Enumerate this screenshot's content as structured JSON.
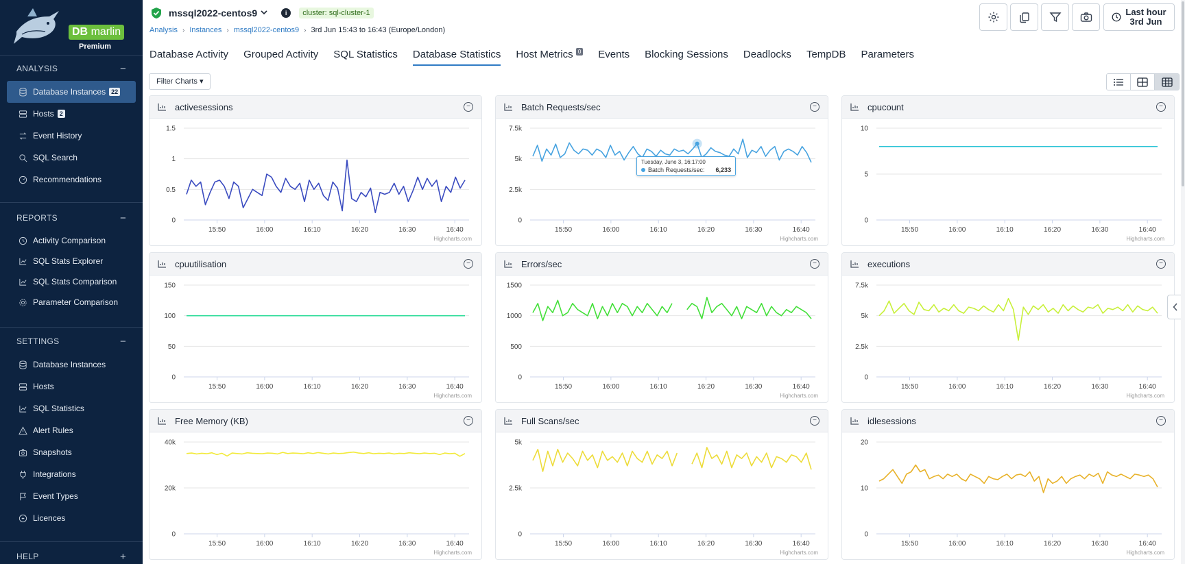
{
  "sidebar": {
    "logo": {
      "brand_bold": "DB",
      "brand": "marlin",
      "tier": "Premium"
    },
    "analysis": {
      "header": "ANALYSIS",
      "toggle": "−",
      "items": [
        {
          "label": "Database Instances",
          "badge": "22",
          "icon": "database-icon",
          "active": true
        },
        {
          "label": "Hosts",
          "badge": "2",
          "icon": "server-icon"
        },
        {
          "label": "Event History",
          "icon": "arrows-icon"
        },
        {
          "label": "SQL Search",
          "icon": "search-icon"
        },
        {
          "label": "Recommendations",
          "icon": "gauge-icon"
        }
      ]
    },
    "reports": {
      "header": "REPORTS",
      "toggle": "−",
      "items": [
        {
          "label": "Activity Comparison",
          "icon": "clock-icon"
        },
        {
          "label": "SQL Stats Explorer",
          "icon": "chart-icon"
        },
        {
          "label": "SQL Stats Comparison",
          "icon": "chart-icon"
        },
        {
          "label": "Parameter Comparison",
          "icon": "gear-icon"
        }
      ]
    },
    "settings": {
      "header": "SETTINGS",
      "toggle": "−",
      "items": [
        {
          "label": "Database Instances",
          "icon": "database-icon"
        },
        {
          "label": "Hosts",
          "icon": "server-icon"
        },
        {
          "label": "SQL Statistics",
          "icon": "chart-icon"
        },
        {
          "label": "Alert Rules",
          "icon": "alert-icon"
        },
        {
          "label": "Snapshots",
          "icon": "camera-icon"
        },
        {
          "label": "Integrations",
          "icon": "plug-icon"
        },
        {
          "label": "Event Types",
          "icon": "flag-icon"
        },
        {
          "label": "Licences",
          "icon": "key-icon"
        }
      ]
    },
    "help": {
      "header": "HELP",
      "toggle": "+"
    }
  },
  "header": {
    "instance": "mssql2022-centos9",
    "cluster": "cluster: sql-cluster-1",
    "breadcrumb": [
      "Analysis",
      "Instances",
      "mssql2022-centos9"
    ],
    "time_range": "3rd Jun 15:43 to 16:43 (Europe/London)",
    "time_button": {
      "line1": "Last hour",
      "line2": "3rd Jun"
    }
  },
  "tabs": [
    {
      "label": "Database Activity"
    },
    {
      "label": "Grouped Activity"
    },
    {
      "label": "SQL Statistics"
    },
    {
      "label": "Database Statistics",
      "active": true
    },
    {
      "label": "Host Metrics",
      "badge": "0"
    },
    {
      "label": "Events"
    },
    {
      "label": "Blocking Sessions"
    },
    {
      "label": "Deadlocks"
    },
    {
      "label": "TempDB"
    },
    {
      "label": "Parameters"
    }
  ],
  "filter_label": "Filter Charts ▾",
  "credit": "Highcharts.com",
  "tooltip": {
    "date": "Tuesday, June 3, 16:17:00",
    "series": "Batch Requests/sec:",
    "value": "6,233"
  },
  "chart_data": [
    {
      "type": "line",
      "title": "activesessions",
      "color": "#3b4cc0",
      "ylim": [
        0,
        1.5
      ],
      "yticks": [
        {
          "v": 0,
          "label": "0"
        },
        {
          "v": 0.5,
          "label": "0.5"
        },
        {
          "v": 1,
          "label": "1"
        },
        {
          "v": 1.5,
          "label": "1.5"
        }
      ],
      "xticks": [
        "15:50",
        "16:00",
        "16:10",
        "16:20",
        "16:30",
        "16:40"
      ],
      "values": [
        0.42,
        0.65,
        0.55,
        0.62,
        0.25,
        0.45,
        0.62,
        0.65,
        0.55,
        0.35,
        0.62,
        0.55,
        0.2,
        0.35,
        0.5,
        0.45,
        0.4,
        0.75,
        0.7,
        0.55,
        0.45,
        0.68,
        0.55,
        0.5,
        0.6,
        0.3,
        0.65,
        0.5,
        0.6,
        0.4,
        0.32,
        0.62,
        0.52,
        0.15,
        0.98,
        0.35,
        0.3,
        0.45,
        0.38,
        0.52,
        0.12,
        0.45,
        0.42,
        0.45,
        0.6,
        0.42,
        0.55,
        0.3,
        0.48,
        0.7,
        0.5,
        0.68,
        0.55,
        0.65,
        0.3,
        0.55,
        0.45,
        0.7,
        0.52,
        0.65
      ]
    },
    {
      "type": "line",
      "title": "Batch Requests/sec",
      "color": "#47a3e0",
      "ylim": [
        0,
        7500
      ],
      "yticks": [
        {
          "v": 0,
          "label": "0"
        },
        {
          "v": 2500,
          "label": "2.5k"
        },
        {
          "v": 5000,
          "label": "5k"
        },
        {
          "v": 7500,
          "label": "7.5k"
        }
      ],
      "xticks": [
        "15:50",
        "16:00",
        "16:10",
        "16:20",
        "16:30",
        "16:40"
      ],
      "values": [
        5200,
        6100,
        4800,
        5800,
        5300,
        6200,
        5100,
        5400,
        6300,
        5700,
        5400,
        5800,
        5700,
        5300,
        5800,
        5600,
        5100,
        6100,
        5300,
        5600,
        4900,
        5500,
        6000,
        5400,
        5100,
        5800,
        5600,
        5200,
        5700,
        5400,
        5300,
        5800,
        5600,
        5700,
        5400,
        5800,
        6233,
        5100,
        5400,
        5900,
        5600,
        5500,
        5300,
        5200,
        5800,
        5400,
        6600,
        5100,
        5700,
        5500,
        6000,
        5200,
        5700,
        6000,
        4900,
        5600,
        5800,
        5600,
        5300,
        6000,
        5500,
        4700
      ]
    },
    {
      "type": "line",
      "title": "cpucount",
      "color": "#2ec4d6",
      "ylim": [
        0,
        10
      ],
      "yticks": [
        {
          "v": 0,
          "label": "0"
        },
        {
          "v": 5,
          "label": "5"
        },
        {
          "v": 10,
          "label": "10"
        }
      ],
      "xticks": [
        "15:50",
        "16:00",
        "16:10",
        "16:20",
        "16:30",
        "16:40"
      ],
      "values": [
        8,
        8,
        8,
        8,
        8,
        8,
        8,
        8,
        8,
        8,
        8,
        8,
        8,
        8,
        8,
        8,
        8,
        8,
        8,
        8,
        8,
        8,
        8,
        8,
        8,
        8,
        8,
        8,
        8,
        8,
        8,
        8,
        8,
        8,
        8,
        8,
        8,
        8,
        8,
        8,
        8,
        8,
        8,
        8,
        8,
        8,
        8,
        8,
        8,
        8,
        8,
        8,
        8,
        8,
        8,
        8,
        8,
        8,
        8,
        8
      ]
    },
    {
      "type": "line",
      "title": "cpuutilisation",
      "color": "#2edc9a",
      "ylim": [
        0,
        150
      ],
      "yticks": [
        {
          "v": 0,
          "label": "0"
        },
        {
          "v": 50,
          "label": "50"
        },
        {
          "v": 100,
          "label": "100"
        },
        {
          "v": 150,
          "label": "150"
        }
      ],
      "xticks": [
        "15:50",
        "16:00",
        "16:10",
        "16:20",
        "16:30",
        "16:40"
      ],
      "values": [
        100,
        100,
        100,
        100,
        100,
        100,
        100,
        100,
        100,
        100,
        100,
        100,
        100,
        100,
        100,
        100,
        100,
        100,
        100,
        100,
        100,
        100,
        100,
        100,
        100,
        100,
        100,
        100,
        100,
        100,
        100,
        100,
        100,
        100,
        100,
        100,
        100,
        100,
        100,
        100,
        100,
        100,
        100,
        100,
        100,
        100,
        100,
        100,
        100,
        100,
        100,
        100,
        100,
        100,
        100,
        100,
        100,
        100,
        100,
        100
      ]
    },
    {
      "type": "line",
      "title": "Errors/sec",
      "color": "#44e03a",
      "ylim": [
        0,
        1500
      ],
      "yticks": [
        {
          "v": 0,
          "label": "0"
        },
        {
          "v": 500,
          "label": "500"
        },
        {
          "v": 1000,
          "label": "1000"
        },
        {
          "v": 1500,
          "label": "1500"
        }
      ],
      "xticks": [
        "15:50",
        "16:00",
        "16:10",
        "16:20",
        "16:30",
        "16:40"
      ],
      "values": [
        1050,
        1200,
        920,
        1150,
        1050,
        1250,
        1000,
        1050,
        1200,
        1100,
        1050,
        1000,
        1200,
        950,
        1150,
        1000,
        1200,
        1050,
        1200,
        1150,
        1000,
        1150,
        1050,
        1200,
        1100,
        1000,
        1150,
        1050,
        1200,
        null,
        null,
        1100,
        1200,
        1150,
        950,
        1300,
        1050,
        1150,
        1200,
        1100,
        1000,
        1150,
        950,
        1150,
        1100,
        1050,
        1200,
        1000,
        1150,
        1050,
        1000,
        1100,
        1050,
        1150,
        1100,
        1050,
        950
      ]
    },
    {
      "type": "line",
      "title": "executions",
      "color": "#c8f03a",
      "ylim": [
        0,
        7500
      ],
      "yticks": [
        {
          "v": 0,
          "label": "0"
        },
        {
          "v": 2500,
          "label": "2.5k"
        },
        {
          "v": 5000,
          "label": "5k"
        },
        {
          "v": 7500,
          "label": "7.5k"
        }
      ],
      "xticks": [
        "15:50",
        "16:00",
        "16:10",
        "16:20",
        "16:30",
        "16:40"
      ],
      "values": [
        5000,
        5400,
        6200,
        5200,
        5600,
        6000,
        5400,
        5100,
        6100,
        5500,
        5400,
        5900,
        5300,
        5600,
        5400,
        5900,
        5400,
        5200,
        5700,
        5600,
        5400,
        5800,
        5500,
        5300,
        5900,
        5400,
        6400,
        5500,
        3000,
        5700,
        5100,
        5800,
        5500,
        5900,
        5300,
        5600,
        5200,
        5900,
        5400,
        5800,
        5500,
        5300,
        5700,
        5600,
        5900,
        5200,
        5600,
        5500,
        5700,
        5400,
        5900,
        5300,
        5800,
        5500,
        5400,
        5700,
        5200
      ]
    },
    {
      "type": "line",
      "title": "Free Memory (KB)",
      "color": "#f2ea3a",
      "ylim": [
        0,
        40000
      ],
      "yticks": [
        {
          "v": 0,
          "label": "0"
        },
        {
          "v": 20000,
          "label": "20k"
        },
        {
          "v": 40000,
          "label": "40k"
        }
      ],
      "xticks": [
        "15:50",
        "16:00",
        "16:10",
        "16:20",
        "16:30",
        "16:40"
      ],
      "values": [
        35000,
        35200,
        34800,
        35100,
        34900,
        35300,
        34500,
        35100,
        33900,
        35200,
        35000,
        34800,
        35300,
        35100,
        35000,
        34900,
        35200,
        35100,
        34800,
        35500,
        35000,
        35200,
        35100,
        34900,
        35300,
        35000,
        35400,
        35100,
        34800,
        35200,
        35000,
        35100,
        35400,
        35600,
        35200,
        35000,
        35300,
        34900,
        35100,
        35000,
        35200,
        34800,
        35100,
        35000,
        35300,
        35100,
        34900,
        35200,
        35000,
        35100,
        34500,
        35200,
        34900,
        35100,
        33800,
        35000
      ]
    },
    {
      "type": "line",
      "title": "Full Scans/sec",
      "color": "#eddc3a",
      "ylim": [
        0,
        5000
      ],
      "yticks": [
        {
          "v": 0,
          "label": "0"
        },
        {
          "v": 2500,
          "label": "2.5k"
        },
        {
          "v": 5000,
          "label": "5k"
        }
      ],
      "xticks": [
        "15:50",
        "16:00",
        "16:10",
        "16:20",
        "16:30",
        "16:40"
      ],
      "values": [
        4000,
        4600,
        3400,
        4500,
        3700,
        4600,
        3900,
        4400,
        4100,
        3700,
        4500,
        4000,
        4300,
        3600,
        4500,
        4000,
        4200,
        3900,
        4400,
        3700,
        4500,
        4100,
        3900,
        4500,
        3800,
        4300,
        4100,
        4500,
        3700,
        4400,
        null,
        null,
        3800,
        4400,
        3600,
        4700,
        4100,
        4300,
        3800,
        4500,
        3600,
        4300,
        4100,
        4400,
        3700,
        4200,
        3900,
        4400,
        3600,
        4200,
        4100,
        3900,
        4300,
        4200,
        3900,
        4400,
        3500
      ]
    },
    {
      "type": "line",
      "title": "idlesessions",
      "color": "#e8b22a",
      "ylim": [
        0,
        20
      ],
      "yticks": [
        {
          "v": 0,
          "label": "0"
        },
        {
          "v": 10,
          "label": "10"
        },
        {
          "v": 20,
          "label": "20"
        }
      ],
      "xticks": [
        "15:50",
        "16:00",
        "16:10",
        "16:20",
        "16:30",
        "16:40"
      ],
      "values": [
        11.5,
        12,
        13,
        14,
        12.5,
        11,
        13,
        13.5,
        15,
        13.5,
        14,
        12,
        12.5,
        12.8,
        12,
        13,
        12.5,
        13,
        12,
        11.5,
        13,
        12.5,
        12,
        11,
        12.5,
        12,
        11.8,
        12.5,
        13,
        12,
        12.8,
        13,
        12.5,
        13.5,
        11.5,
        12.5,
        9,
        12,
        11,
        11.5,
        12.5,
        11,
        12,
        12.5,
        12.8,
        12,
        13,
        12.5,
        13.2,
        11,
        13.5,
        12.8,
        12.5,
        13,
        12.5,
        12,
        13,
        12.8,
        12.5,
        12.8,
        12,
        10.2
      ]
    }
  ]
}
